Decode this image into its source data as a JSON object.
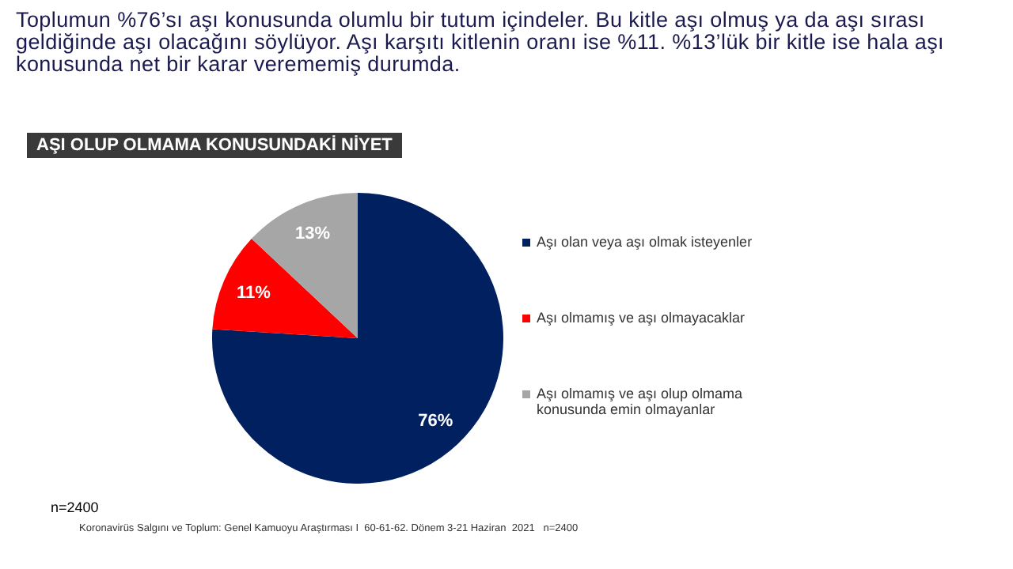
{
  "chart_data": {
    "type": "pie",
    "title": "AŞI OLUP OLMAMA KONUSUNDAKİ NİYET",
    "subtitle": "Toplumun %76’sı aşı konusunda olumlu bir tutum içindeler. Bu kitle aşı olmuş ya da aşı sırası geldiğinde aşı olacağını söylüyor. Aşı karşıtı kitlenin oranı ise %11. %13’lük bir kitle ise hala aşı konusunda net bir karar verememiş durumda.",
    "categories": [
      "Aşı olan veya  aşı olmak isteyenler",
      "Aşı olmamış ve aşı olmayacaklar",
      "Aşı olmamış ve aşı olup olmama konusunda emin olmayanlar"
    ],
    "values": [
      76,
      11,
      13
    ],
    "colors": [
      "#002060",
      "#ff0000",
      "#a6a6a6"
    ],
    "value_labels": [
      "76%",
      "11%",
      "13%"
    ],
    "legend": "right",
    "annotations": [
      "n=2400",
      "Koronavirüs Salgını ve Toplum: Genel Kamuoyu Araştırması I  60-61-62. Dönem 3-21 Haziran  2021   n=2400"
    ]
  }
}
